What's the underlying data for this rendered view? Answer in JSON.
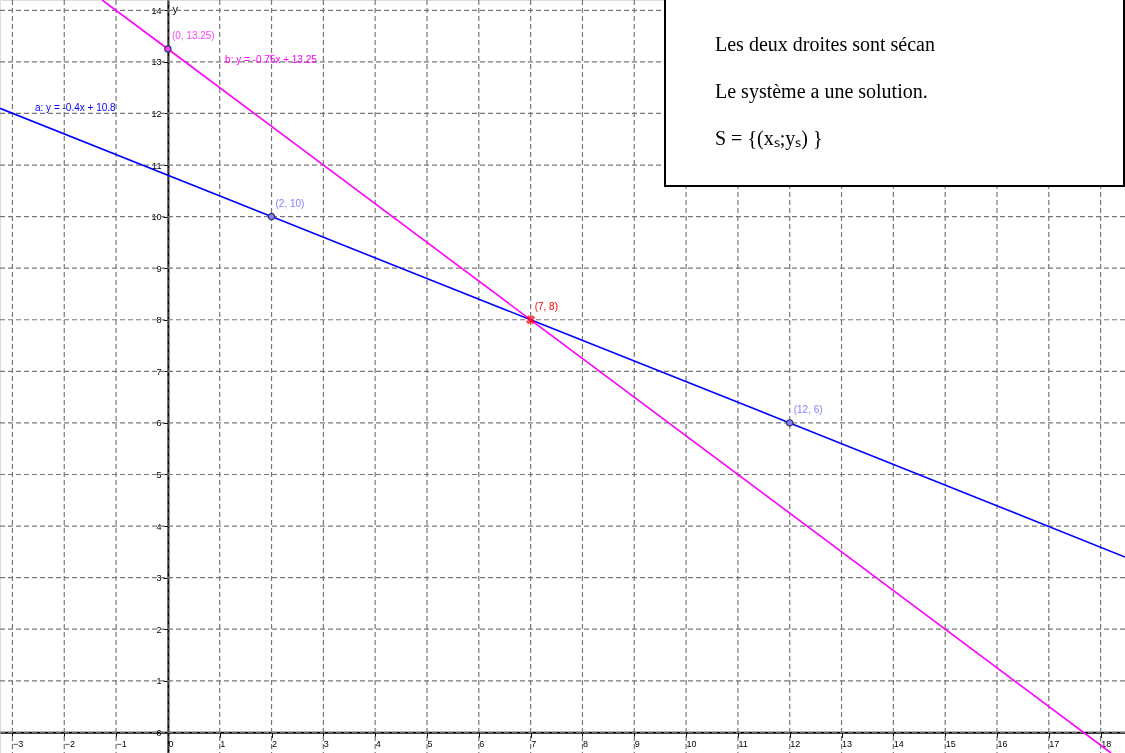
{
  "chart_data": {
    "type": "line",
    "ylabel": "y",
    "xlim": [
      -3.24,
      18.47
    ],
    "ylim": [
      -0.4,
      14.2
    ],
    "xticks": [
      -3,
      -2,
      -1,
      0,
      1,
      2,
      3,
      4,
      5,
      6,
      7,
      8,
      9,
      10,
      11,
      12,
      13,
      14,
      15,
      16,
      17,
      18
    ],
    "yticks": [
      0,
      1,
      2,
      3,
      4,
      5,
      6,
      7,
      8,
      9,
      10,
      11,
      12,
      13,
      14
    ],
    "grid": true,
    "marker": "none",
    "line_style": "solid",
    "series": [
      {
        "name": "a: y = -0.4x + 10.8",
        "color": "#0000ff",
        "x": [
          -3.24,
          2,
          7,
          12,
          18.47
        ],
        "values": [
          12.1,
          10,
          8,
          6,
          3.4
        ]
      },
      {
        "name": "b: y = -0.75x + 13.25",
        "color": "#ff00ff",
        "x": [
          -1.27,
          0,
          7,
          18.2
        ],
        "values": [
          14.2,
          13.25,
          8,
          -0.4
        ]
      },
      {
        "type": "scatter",
        "marker": "circle",
        "color": "#303060",
        "x": [
          0,
          2,
          12
        ],
        "values": [
          13.25,
          10,
          6
        ],
        "colors": [
          "#ff40ff",
          "#8080ff",
          "#8080ff"
        ]
      },
      {
        "type": "scatter",
        "marker": "cross",
        "color": "#ff0000",
        "x": [
          7
        ],
        "values": [
          8
        ]
      }
    ],
    "annotations": [
      {
        "text": "(0, 13.25)",
        "x": 0,
        "y": 13.25
      },
      {
        "text": "(2, 10)",
        "x": 2,
        "y": 10
      },
      {
        "text": "(7, 8)",
        "x": 7,
        "y": 8
      },
      {
        "text": "(12, 6)",
        "x": 12,
        "y": 6
      },
      "Les deux droites sont sécan",
      "Le système a une solution.",
      "S = {(xₛ;yₛ) }"
    ]
  }
}
